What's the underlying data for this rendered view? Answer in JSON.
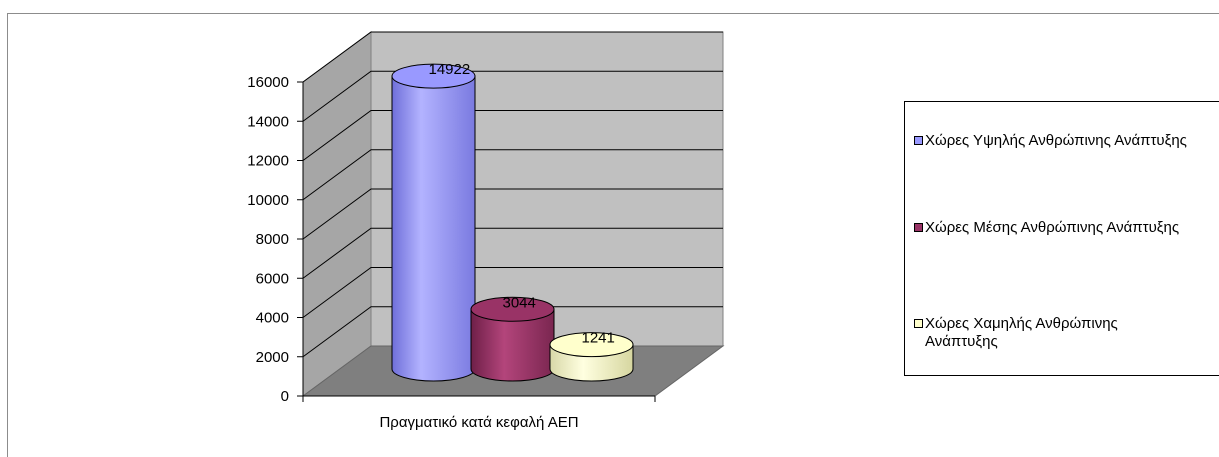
{
  "chart_data": {
    "type": "bar",
    "categories": [
      "Πραγματικό κατά κεφαλή ΑΕΠ"
    ],
    "series": [
      {
        "name": "Χώρες Υψηλής Ανθρώπινης Ανάπτυξης",
        "values": [
          14922
        ],
        "color": "#9999ff"
      },
      {
        "name": "Χώρες Μέσης Ανθρώπινης Ανάπτυξης",
        "values": [
          3044
        ],
        "color": "#993366"
      },
      {
        "name": "Χώρες Χαμηλής Ανθρώπινης Ανάπτυξης",
        "values": [
          1241
        ],
        "color": "#ffffcc"
      }
    ],
    "data_labels": [
      "14922",
      "3044",
      "1241"
    ],
    "y_ticks": [
      "0",
      "2000",
      "4000",
      "6000",
      "8000",
      "10000",
      "12000",
      "14000",
      "16000"
    ],
    "ylim": [
      0,
      16000
    ],
    "grid": true,
    "legend_position": "right",
    "style": "3d-cylinder"
  }
}
